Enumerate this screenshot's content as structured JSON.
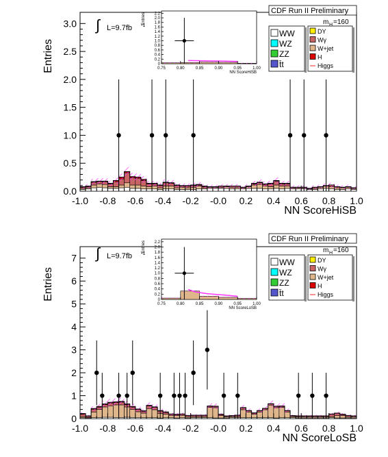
{
  "chart_data": [
    {
      "type": "bar",
      "experiment": "CDF Run II Preliminary",
      "luminosity": "L=9.7fb",
      "lumi_sup": "-1",
      "mass_label": "m",
      "mass_sub": "H",
      "mass_value": "=160",
      "xlabel": "NN ScoreHiSB",
      "ylabel": "Entries",
      "xlim": [
        -1.0,
        1.0
      ],
      "ylim": [
        0,
        3.2
      ],
      "xticks": [
        "-1.0",
        "-0.8",
        "-0.6",
        "-0.4",
        "-0.2",
        "-0.0",
        "0.2",
        "0.4",
        "0.6",
        "0.8",
        "1.0"
      ],
      "yticks": [
        "0.0",
        "0.5",
        "1.0",
        "1.5",
        "2.0",
        "2.5",
        "3.0"
      ],
      "bin_edges_start": -1.0,
      "bin_width": 0.04,
      "stack_series": [
        {
          "name": "WW",
          "color": "#ffffff",
          "values": [
            0.03,
            0.04,
            0.06,
            0.07,
            0.06,
            0.05,
            0.05,
            0.06,
            0.07,
            0.05,
            0.05,
            0.04,
            0.04,
            0.04,
            0.03,
            0.04,
            0.04,
            0.03,
            0.03,
            0.03,
            0.03,
            0.04,
            0.04,
            0.05,
            0.05,
            0.05,
            0.05,
            0.04,
            0.04,
            0.04,
            0.05,
            0.05,
            0.05,
            0.04,
            0.04,
            0.05,
            0.04,
            0.05,
            0.04,
            0.04,
            0.04,
            0.03,
            0.03,
            0.04,
            0.05,
            0.04,
            0.03,
            0.03,
            0.04,
            0.03
          ]
        },
        {
          "name": "W+jet",
          "color": "#dfb58c",
          "values": [
            0.02,
            0.02,
            0.05,
            0.06,
            0.06,
            0.03,
            0.03,
            0.05,
            0.08,
            0.06,
            0.06,
            0.05,
            0.04,
            0.05,
            0.03,
            0.05,
            0.05,
            0.03,
            0.04,
            0.03,
            0.04,
            0.05,
            0.02,
            0.02,
            0.02,
            0.02,
            0.03,
            0.03,
            0.03,
            0.02,
            0.03,
            0.06,
            0.07,
            0.05,
            0.04,
            0.06,
            0.05,
            0.04,
            0.02,
            0.02,
            0.02,
            0.01,
            0.02,
            0.03,
            0.04,
            0.04,
            0.03,
            0.03,
            0.03,
            0.02
          ]
        },
        {
          "name": "Wγ",
          "color": "#c86464",
          "values": [
            0.02,
            0.02,
            0.05,
            0.04,
            0.05,
            0.05,
            0.09,
            0.11,
            0.18,
            0.13,
            0.12,
            0.1,
            0.05,
            0.04,
            0.04,
            0.06,
            0.05,
            0.04,
            0.02,
            0.03,
            0.03,
            0.02,
            0.02,
            0.01,
            0.01,
            0.02,
            0.01,
            0.02,
            0.02,
            0.01,
            0.01,
            0.02,
            0.03,
            0.03,
            0.05,
            0.07,
            0.04,
            0.04,
            0.01,
            0.01,
            0.01,
            0.01,
            0.02,
            0.01,
            0.01,
            0.03,
            0.02,
            0.01,
            0.01,
            0.01
          ]
        },
        {
          "name": "H",
          "color": "#dd0000",
          "values": [
            0.01,
            0.01,
            0.01,
            0.01,
            0.01,
            0.01,
            0.02,
            0.03,
            0.02,
            0.02,
            0.02,
            0.02,
            0.01,
            0.01,
            0.01,
            0.01,
            0.01,
            0.01,
            0.01,
            0.01,
            0.01,
            0.01,
            0.01,
            0,
            0,
            0,
            0,
            0,
            0,
            0,
            0,
            0.01,
            0.01,
            0.01,
            0.01,
            0.01,
            0.01,
            0.01,
            0,
            0,
            0,
            0,
            0,
            0,
            0,
            0,
            0,
            0,
            0,
            0
          ]
        }
      ],
      "data_points": [
        {
          "x": -0.72,
          "y": 1.0,
          "yerr": 1.0
        },
        {
          "x": -0.48,
          "y": 1.0,
          "yerr": 1.0
        },
        {
          "x": -0.38,
          "y": 1.0,
          "yerr": 1.0
        },
        {
          "x": -0.18,
          "y": 1.0,
          "yerr": 1.0
        },
        {
          "x": 0.52,
          "y": 1.0,
          "yerr": 1.0
        },
        {
          "x": 0.62,
          "y": 1.0,
          "yerr": 1.0
        },
        {
          "x": 0.78,
          "y": 1.0,
          "yerr": 1.0
        }
      ],
      "inset": {
        "xlabel": "NN ScoreHiSB",
        "ylabel": "Entries",
        "xlim": [
          0.75,
          1.0
        ],
        "ylim": [
          0,
          2.3
        ],
        "xticks": [
          "0.75",
          "0.80",
          "0.85",
          "0.90",
          "0.95",
          "1.00"
        ],
        "yticks": [
          "0",
          "0.2",
          "0.4",
          "0.6",
          "0.8",
          "1.0",
          "1.2",
          "1.4",
          "1.6",
          "1.8",
          "2.0",
          "2.2"
        ],
        "data_point": {
          "x": 0.81,
          "y": 1.0,
          "yerr": 1.0,
          "xerr": 0.025
        },
        "bins": [
          {
            "x0": 0.75,
            "x1": 0.8,
            "value": 0.04
          },
          {
            "x0": 0.8,
            "x1": 0.85,
            "value": 0.05
          },
          {
            "x0": 0.85,
            "x1": 0.9,
            "value": 0.07
          },
          {
            "x0": 0.9,
            "x1": 0.95,
            "value": 0.06
          },
          {
            "x0": 0.95,
            "x1": 1.0,
            "value": 0.02
          }
        ],
        "signal_curve": [
          [
            0.82,
            0.14
          ],
          [
            0.85,
            0.13
          ],
          [
            0.9,
            0.12
          ],
          [
            0.95,
            0.1
          ]
        ]
      },
      "legend_left": [
        {
          "label": "WW",
          "color": "#ffffff"
        },
        {
          "label": "WZ",
          "color": "#00ffff"
        },
        {
          "label": "ZZ",
          "color": "#33cc33"
        },
        {
          "label": "t̄t",
          "color": "#5555cc"
        }
      ],
      "legend_right": [
        {
          "label": "DY",
          "color": "#ffee00",
          "kind": "box"
        },
        {
          "label": "Wγ",
          "color": "#c86464",
          "kind": "box"
        },
        {
          "label": "W+jet",
          "color": "#dfb58c",
          "kind": "box"
        },
        {
          "label": "H",
          "color": "#dd0000",
          "kind": "box"
        },
        {
          "label": "Higgs",
          "color": "#ff2222",
          "kind": "line"
        }
      ]
    },
    {
      "type": "bar",
      "experiment": "CDF Run II Preliminary",
      "luminosity": "L=9.7fb",
      "lumi_sup": "-1",
      "mass_label": "m",
      "mass_sub": "H",
      "mass_value": "=160",
      "xlabel": "NN ScoreLoSB",
      "ylabel": "Entries",
      "xlim": [
        -1.0,
        1.0
      ],
      "ylim": [
        0,
        7.5
      ],
      "xticks": [
        "-1.0",
        "-0.8",
        "-0.6",
        "-0.4",
        "-0.2",
        "-0.0",
        "0.2",
        "0.4",
        "0.6",
        "0.8",
        "1.0"
      ],
      "yticks": [
        "0",
        "1",
        "2",
        "3",
        "4",
        "5",
        "6",
        "7"
      ],
      "bin_edges_start": -1.0,
      "bin_width": 0.04,
      "stack_series": [
        {
          "name": "WW",
          "color": "#ffffff",
          "values": [
            0.04,
            0.03,
            0.04,
            0.05,
            0.06,
            0.06,
            0.05,
            0.05,
            0.06,
            0.05,
            0.05,
            0.04,
            0.04,
            0.04,
            0.03,
            0.04,
            0.04,
            0.03,
            0.04,
            0.03,
            0.04,
            0.04,
            0.04,
            0.04,
            0.03,
            0.03,
            0.03,
            0.04,
            0.04,
            0.04,
            0.04,
            0.04,
            0.04,
            0.04,
            0.04,
            0.03,
            0.04,
            0.04,
            0.04,
            0.03,
            0.03,
            0.03,
            0.03,
            0.03,
            0.03,
            0.04,
            0.03,
            0.03,
            0.03,
            0.03
          ]
        },
        {
          "name": "W+jet",
          "color": "#dfb58c",
          "values": [
            0.05,
            0.02,
            0.25,
            0.35,
            0.45,
            0.5,
            0.55,
            0.55,
            0.45,
            0.35,
            0.25,
            0.2,
            0.4,
            0.35,
            0.2,
            0.15,
            0.1,
            0.1,
            0.1,
            0.05,
            0.05,
            0.05,
            0.05,
            0.45,
            0.45,
            0.1,
            0.05,
            0.05,
            0.05,
            0.35,
            0.25,
            0.15,
            0.25,
            0.35,
            0.55,
            0.45,
            0.45,
            0.25,
            0.05,
            0.05,
            0.05,
            0.05,
            0.05,
            0.05,
            0.05,
            0.05,
            0.1,
            0.1,
            0.05,
            0.05
          ]
        },
        {
          "name": "Wγ",
          "color": "#c86464",
          "values": [
            0.1,
            0.05,
            0.12,
            0.1,
            0.1,
            0.12,
            0.1,
            0.12,
            0.1,
            0.1,
            0.1,
            0.08,
            0.12,
            0.1,
            0.1,
            0.08,
            0.05,
            0.05,
            0.05,
            0.05,
            0.05,
            0.05,
            0.05,
            0.05,
            0.05,
            0.05,
            0.03,
            0.03,
            0.05,
            0.08,
            0.05,
            0.05,
            0.05,
            0.05,
            0.05,
            0.05,
            0.05,
            0.05,
            0.03,
            0.03,
            0.03,
            0.03,
            0.03,
            0.03,
            0.03,
            0.1,
            0.1,
            0.05,
            0.05,
            0.03
          ]
        },
        {
          "name": "H",
          "color": "#dd0000",
          "values": [
            0.03,
            0.02,
            0.03,
            0.03,
            0.03,
            0.03,
            0.03,
            0.03,
            0.03,
            0.03,
            0.02,
            0.02,
            0.02,
            0.02,
            0.02,
            0.02,
            0.01,
            0.01,
            0.01,
            0.01,
            0.01,
            0.01,
            0.01,
            0.01,
            0.01,
            0.01,
            0.01,
            0.01,
            0.01,
            0.01,
            0.01,
            0.01,
            0.01,
            0.01,
            0.01,
            0.01,
            0.01,
            0.01,
            0.01,
            0.01,
            0.01,
            0.01,
            0.01,
            0.01,
            0.01,
            0.01,
            0.01,
            0.01,
            0.01,
            0.01
          ]
        }
      ],
      "data_points": [
        {
          "x": -0.88,
          "y": 2.0,
          "yerr": 1.41
        },
        {
          "x": -0.84,
          "y": 1.0,
          "yerr": 1.0
        },
        {
          "x": -0.72,
          "y": 1.0,
          "yerr": 1.0
        },
        {
          "x": -0.66,
          "y": 1.0,
          "yerr": 1.0
        },
        {
          "x": -0.62,
          "y": 2.0,
          "yerr": 1.41
        },
        {
          "x": -0.42,
          "y": 1.0,
          "yerr": 1.0
        },
        {
          "x": -0.32,
          "y": 1.0,
          "yerr": 1.0
        },
        {
          "x": -0.28,
          "y": 1.0,
          "yerr": 1.0
        },
        {
          "x": -0.24,
          "y": 1.0,
          "yerr": 1.0
        },
        {
          "x": -0.18,
          "y": 2.0,
          "yerr": 1.41
        },
        {
          "x": -0.08,
          "y": 3.0,
          "yerr": 1.73
        },
        {
          "x": 0.04,
          "y": 1.0,
          "yerr": 1.0
        },
        {
          "x": 0.14,
          "y": 1.0,
          "yerr": 1.0
        },
        {
          "x": 0.58,
          "y": 1.0,
          "yerr": 1.0
        },
        {
          "x": 0.68,
          "y": 1.0,
          "yerr": 1.0
        },
        {
          "x": 0.78,
          "y": 1.0,
          "yerr": 1.0
        }
      ],
      "inset": {
        "xlabel": "NN ScoreLoSB",
        "ylabel": "Entries",
        "xlim": [
          0.75,
          1.0
        ],
        "ylim": [
          0,
          2.3
        ],
        "xticks": [
          "0.75",
          "0.80",
          "0.85",
          "0.90",
          "0.95",
          "1.00"
        ],
        "yticks": [
          "0",
          "0.2",
          "0.4",
          "0.6",
          "0.8",
          "1.0",
          "1.2",
          "1.4",
          "1.6",
          "1.8",
          "2.0",
          "2.2"
        ],
        "data_point": {
          "x": 0.81,
          "y": 1.0,
          "yerr": 1.0,
          "xerr": 0.025
        },
        "bins": [
          {
            "x0": 0.75,
            "x1": 0.8,
            "value": 0.05
          },
          {
            "x0": 0.8,
            "x1": 0.85,
            "value": 0.32
          },
          {
            "x0": 0.85,
            "x1": 0.9,
            "value": 0.12
          },
          {
            "x0": 0.9,
            "x1": 0.95,
            "value": 0.08
          },
          {
            "x0": 0.95,
            "x1": 1.0,
            "value": 0.04
          }
        ],
        "signal_curve": [
          [
            0.82,
            0.38
          ],
          [
            0.84,
            0.28
          ],
          [
            0.87,
            0.22
          ],
          [
            0.92,
            0.16
          ],
          [
            0.95,
            0.12
          ]
        ]
      },
      "legend_left": [
        {
          "label": "WW",
          "color": "#ffffff"
        },
        {
          "label": "WZ",
          "color": "#00ffff"
        },
        {
          "label": "ZZ",
          "color": "#33cc33"
        },
        {
          "label": "t̄t",
          "color": "#5555cc"
        }
      ],
      "legend_right": [
        {
          "label": "DY",
          "color": "#ffee00",
          "kind": "box"
        },
        {
          "label": "Wγ",
          "color": "#c86464",
          "kind": "box"
        },
        {
          "label": "W+jet",
          "color": "#dfb58c",
          "kind": "box"
        },
        {
          "label": "H",
          "color": "#dd0000",
          "kind": "box"
        },
        {
          "label": "Higgs",
          "color": "#ff2222",
          "kind": "line"
        }
      ]
    }
  ]
}
